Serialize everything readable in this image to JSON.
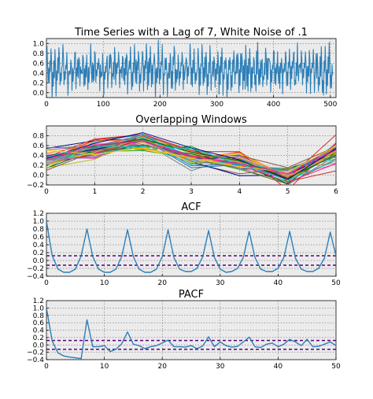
{
  "figure": {
    "background": "#ffffff",
    "panel_background": "#ebebeb"
  },
  "chart_data": [
    {
      "id": "ts",
      "type": "line",
      "title": "Time Series with a Lag of 7, White Noise of .1",
      "xlabel": "",
      "ylabel": "",
      "xlim": [
        0,
        510
      ],
      "ylim": [
        -0.1,
        1.1
      ],
      "xticks": [
        0,
        100,
        200,
        300,
        400,
        500
      ],
      "yticks": [
        0.0,
        0.2,
        0.4,
        0.6,
        0.8,
        1.0
      ],
      "ytick_labels": [
        "0.0",
        "0.2",
        "0.4",
        "0.6",
        "0.8",
        "1.0"
      ],
      "grid": true,
      "series_color": "#2c7fb8",
      "pattern": [
        0.42,
        0.85,
        0.62,
        0.07,
        0.46,
        0.24,
        0.62
      ],
      "noise_sd": 0.1,
      "n_points": 505,
      "note": "values are the repeating lag-7 pattern plus white noise"
    },
    {
      "id": "windows",
      "type": "line",
      "title": "Overlapping Windows",
      "xlabel": "",
      "ylabel": "",
      "xlim": [
        0,
        6
      ],
      "ylim": [
        -0.2,
        1.0
      ],
      "xticks": [
        0,
        1,
        2,
        3,
        4,
        5,
        6
      ],
      "yticks": [
        -0.2,
        0.0,
        0.2,
        0.4,
        0.6,
        0.8
      ],
      "ytick_labels": [
        "−0.2",
        "0.0",
        "0.2",
        "0.4",
        "0.6",
        "0.8"
      ],
      "grid": true,
      "mean_window": [
        0.3,
        0.52,
        0.72,
        0.38,
        0.22,
        -0.02,
        0.46
      ],
      "window_spread": 0.11,
      "n_windows": 45
    },
    {
      "id": "acf",
      "type": "line",
      "title": "ACF",
      "xlabel": "",
      "ylabel": "",
      "xlim": [
        0,
        50
      ],
      "ylim": [
        -0.4,
        1.2
      ],
      "xticks": [
        0,
        10,
        20,
        30,
        40,
        50
      ],
      "yticks": [
        -0.4,
        -0.2,
        0.0,
        0.2,
        0.4,
        0.6,
        0.8,
        1.0,
        1.2
      ],
      "ytick_labels": [
        "−0.4",
        "−0.2",
        "0.0",
        "0.2",
        "0.4",
        "0.6",
        "0.8",
        "1.0",
        "1.2"
      ],
      "grid": true,
      "series_color": "#2c7fb8",
      "conf_color": "#5a007a",
      "conf_bounds": [
        0.12,
        -0.12
      ],
      "x": [
        0,
        1,
        2,
        3,
        4,
        5,
        6,
        7,
        8,
        9,
        10,
        11,
        12,
        13,
        14,
        15,
        16,
        17,
        18,
        19,
        20,
        21,
        22,
        23,
        24,
        25,
        26,
        27,
        28,
        29,
        30,
        31,
        32,
        33,
        34,
        35,
        36,
        37,
        38,
        39,
        40,
        41,
        42,
        43,
        44,
        45,
        46,
        47,
        48,
        49,
        50
      ],
      "values": [
        1.0,
        0.12,
        -0.22,
        -0.3,
        -0.3,
        -0.22,
        0.12,
        0.8,
        0.1,
        -0.22,
        -0.3,
        -0.3,
        -0.22,
        0.1,
        0.78,
        0.1,
        -0.22,
        -0.3,
        -0.3,
        -0.22,
        0.1,
        0.78,
        0.08,
        -0.22,
        -0.28,
        -0.28,
        -0.2,
        0.1,
        0.76,
        0.08,
        -0.22,
        -0.3,
        -0.28,
        -0.2,
        0.08,
        0.74,
        0.08,
        -0.22,
        -0.28,
        -0.28,
        -0.2,
        0.08,
        0.74,
        0.06,
        -0.22,
        -0.28,
        -0.28,
        -0.2,
        0.06,
        0.72,
        0.12
      ]
    },
    {
      "id": "pacf",
      "type": "line",
      "title": "PACF",
      "xlabel": "",
      "ylabel": "",
      "xlim": [
        0,
        50
      ],
      "ylim": [
        -0.4,
        1.2
      ],
      "xticks": [
        0,
        10,
        20,
        30,
        40,
        50
      ],
      "yticks": [
        -0.4,
        -0.2,
        0.0,
        0.2,
        0.4,
        0.6,
        0.8,
        1.0,
        1.2
      ],
      "ytick_labels": [
        "−0.4",
        "−0.2",
        "0.0",
        "0.2",
        "0.4",
        "0.6",
        "0.8",
        "1.0",
        "1.2"
      ],
      "grid": true,
      "series_color": "#2c7fb8",
      "conf_color": "#5a007a",
      "conf_bounds": [
        0.12,
        -0.12
      ],
      "x": [
        0,
        1,
        2,
        3,
        4,
        5,
        6,
        7,
        8,
        9,
        10,
        11,
        12,
        13,
        14,
        15,
        16,
        17,
        18,
        19,
        20,
        21,
        22,
        23,
        24,
        25,
        26,
        27,
        28,
        29,
        30,
        31,
        32,
        33,
        34,
        35,
        36,
        37,
        38,
        39,
        40,
        41,
        42,
        43,
        44,
        45,
        46,
        47,
        48,
        49,
        50
      ],
      "values": [
        1.0,
        0.1,
        -0.22,
        -0.3,
        -0.33,
        -0.35,
        -0.37,
        0.68,
        -0.05,
        -0.05,
        -0.02,
        -0.18,
        -0.12,
        0.03,
        0.35,
        0.02,
        -0.02,
        -0.1,
        -0.05,
        -0.02,
        0.05,
        0.13,
        -0.05,
        -0.05,
        -0.06,
        -0.02,
        -0.1,
        -0.03,
        0.22,
        -0.05,
        0.08,
        -0.02,
        -0.06,
        -0.04,
        0.08,
        0.21,
        -0.05,
        -0.07,
        0.02,
        0.05,
        -0.05,
        0.02,
        0.15,
        0.08,
        -0.02,
        0.15,
        -0.05,
        -0.04,
        0.02,
        0.08,
        -0.02
      ]
    }
  ]
}
